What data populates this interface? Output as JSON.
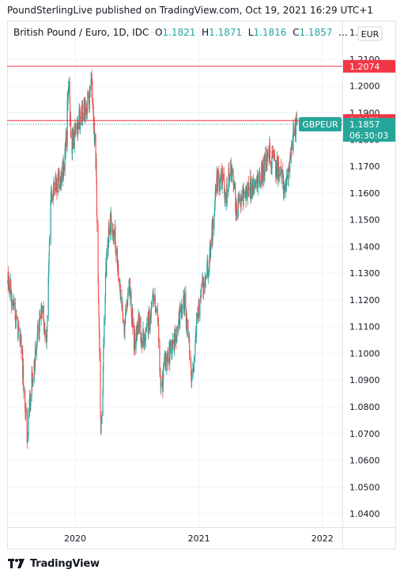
{
  "header": {
    "publisher_line": "PoundSterlingLive published on TradingView.com, Oct 19, 2021 16:29 UTC+1"
  },
  "legend": {
    "title": "British Pound / Euro, 1D, IDC",
    "o_label": "O",
    "o_value": "1.1821",
    "h_label": "H",
    "h_value": "1.1871",
    "l_label": "L",
    "l_value": "1.1816",
    "c_label": "C",
    "c_value": "1.1857",
    "ellipsis": "..."
  },
  "currency_button": "EUR",
  "footer": {
    "brand": "TradingView"
  },
  "colors": {
    "up": "#26a69a",
    "down": "#ef5350",
    "line_red": "#f23645",
    "grid": "#f0f3fa",
    "text": "#131722"
  },
  "chart_data": {
    "type": "candlestick",
    "symbol": "GBPEUR",
    "interval": "1D",
    "ylim": [
      1.035,
      1.2245
    ],
    "y_ticks": [
      "1.2200",
      "1.2100",
      "1.2000",
      "1.1900",
      "1.1800",
      "1.1700",
      "1.1600",
      "1.1500",
      "1.1400",
      "1.1300",
      "1.1200",
      "1.1100",
      "1.1000",
      "1.0900",
      "1.0800",
      "1.0700",
      "1.0600",
      "1.0500",
      "1.0400"
    ],
    "x_ticks": [
      "2020",
      "2021",
      "2022"
    ],
    "x_tick_dates": [
      "2020-01-01",
      "2021-01-01",
      "2022-01-01"
    ],
    "x_range": [
      "2019-06-14",
      "2022-03-01"
    ],
    "horizontal_lines": [
      {
        "value": 1.2074,
        "label": "1.2074"
      },
      {
        "value": 1.1871,
        "label": "1.1871"
      }
    ],
    "last_price": {
      "value": 1.1857,
      "label": "1.1857",
      "countdown": "06:30:03",
      "symbol_label": "GBPEUR"
    },
    "path": [
      [
        "2019-06-14",
        1.13
      ],
      [
        "2019-07-05",
        1.115
      ],
      [
        "2019-07-25",
        1.105
      ],
      [
        "2019-08-09",
        1.075
      ],
      [
        "2019-08-12",
        1.065
      ],
      [
        "2019-08-22",
        1.085
      ],
      [
        "2019-09-05",
        1.1
      ],
      [
        "2019-09-25",
        1.118
      ],
      [
        "2019-10-08",
        1.105
      ],
      [
        "2019-10-22",
        1.16
      ],
      [
        "2019-11-12",
        1.165
      ],
      [
        "2019-11-26",
        1.168
      ],
      [
        "2019-12-06",
        1.18
      ],
      [
        "2019-12-13",
        1.205
      ],
      [
        "2019-12-20",
        1.177
      ],
      [
        "2020-01-08",
        1.185
      ],
      [
        "2020-01-24",
        1.19
      ],
      [
        "2020-02-11",
        1.195
      ],
      [
        "2020-02-19",
        1.202
      ],
      [
        "2020-03-03",
        1.17
      ],
      [
        "2020-03-10",
        1.12
      ],
      [
        "2020-03-17",
        1.07
      ],
      [
        "2020-03-20",
        1.075
      ],
      [
        "2020-03-31",
        1.13
      ],
      [
        "2020-04-14",
        1.15
      ],
      [
        "2020-04-28",
        1.145
      ],
      [
        "2020-05-12",
        1.125
      ],
      [
        "2020-05-26",
        1.11
      ],
      [
        "2020-06-09",
        1.125
      ],
      [
        "2020-06-23",
        1.105
      ],
      [
        "2020-07-07",
        1.11
      ],
      [
        "2020-07-21",
        1.105
      ],
      [
        "2020-08-04",
        1.11
      ],
      [
        "2020-08-18",
        1.118
      ],
      [
        "2020-09-01",
        1.117
      ],
      [
        "2020-09-10",
        1.084
      ],
      [
        "2020-09-21",
        1.095
      ],
      [
        "2020-10-06",
        1.1
      ],
      [
        "2020-10-22",
        1.105
      ],
      [
        "2020-11-05",
        1.115
      ],
      [
        "2020-11-19",
        1.12
      ],
      [
        "2020-12-01",
        1.105
      ],
      [
        "2020-12-11",
        1.09
      ],
      [
        "2020-12-24",
        1.11
      ],
      [
        "2021-01-12",
        1.125
      ],
      [
        "2021-01-26",
        1.13
      ],
      [
        "2021-02-09",
        1.145
      ],
      [
        "2021-02-23",
        1.165
      ],
      [
        "2021-03-09",
        1.165
      ],
      [
        "2021-03-23",
        1.16
      ],
      [
        "2021-04-06",
        1.17
      ],
      [
        "2021-04-20",
        1.155
      ],
      [
        "2021-05-04",
        1.155
      ],
      [
        "2021-05-18",
        1.16
      ],
      [
        "2021-06-01",
        1.162
      ],
      [
        "2021-06-15",
        1.162
      ],
      [
        "2021-06-29",
        1.165
      ],
      [
        "2021-07-13",
        1.17
      ],
      [
        "2021-07-27",
        1.175
      ],
      [
        "2021-08-10",
        1.172
      ],
      [
        "2021-08-24",
        1.168
      ],
      [
        "2021-09-07",
        1.163
      ],
      [
        "2021-09-21",
        1.163
      ],
      [
        "2021-10-05",
        1.18
      ],
      [
        "2021-10-19",
        1.1857
      ]
    ]
  }
}
